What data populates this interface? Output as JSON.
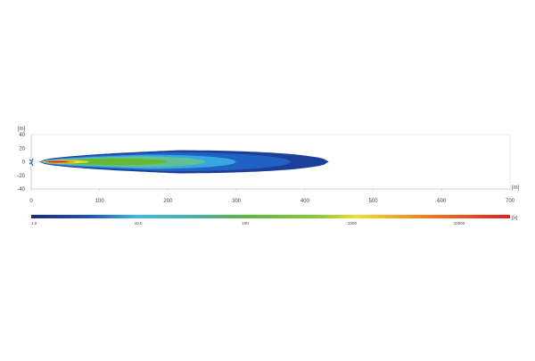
{
  "chart_data": {
    "type": "heatmap",
    "x_unit": "[m]",
    "y_unit": "[m]",
    "xlim": [
      0,
      700
    ],
    "ylim": [
      -40,
      40
    ],
    "x_ticks": [
      0,
      100,
      200,
      300,
      400,
      500,
      600,
      700
    ],
    "y_ticks": [
      40,
      20,
      0,
      -20,
      -40
    ],
    "colorbar": {
      "unit": "[lx]",
      "scale": "log",
      "tick_labels": [
        "1.0",
        "10.0",
        "100",
        "1000",
        "10000"
      ],
      "tick_values": [
        1,
        10,
        100,
        1000,
        10000
      ],
      "colors": [
        "#1a2a80",
        "#1f5fc8",
        "#3fb8e8",
        "#5cb83a",
        "#f0e030",
        "#f08020",
        "#e02020"
      ]
    },
    "contours": [
      {
        "level": 1,
        "color": "#1d3f9a",
        "x_start": 12,
        "x_end": 435,
        "x_at_max": 215,
        "max_halfwidth": 17
      },
      {
        "level": 3,
        "color": "#1f62c4",
        "x_start": 12,
        "x_end": 380,
        "x_at_max": 200,
        "max_halfwidth": 14
      },
      {
        "level": 10,
        "color": "#3aa6e0",
        "x_start": 13,
        "x_end": 300,
        "x_at_max": 170,
        "max_halfwidth": 10.5
      },
      {
        "level": 30,
        "color": "#5fbf9a",
        "x_start": 14,
        "x_end": 255,
        "x_at_max": 150,
        "max_halfwidth": 8
      },
      {
        "level": 100,
        "color": "#66b832",
        "x_start": 15,
        "x_end": 200,
        "x_at_max": 120,
        "max_halfwidth": 5
      },
      {
        "level": 1000,
        "color": "#e8e030",
        "x_start": 17,
        "x_end": 85,
        "x_at_max": 40,
        "max_halfwidth": 2.6
      },
      {
        "level": 3000,
        "color": "#f08a20",
        "x_start": 19,
        "x_end": 65,
        "x_at_max": 35,
        "max_halfwidth": 1.8
      },
      {
        "level": 10000,
        "color": "#d82020",
        "x_start": 21,
        "x_end": 55,
        "x_at_max": 33,
        "max_halfwidth": 1.1
      }
    ]
  }
}
